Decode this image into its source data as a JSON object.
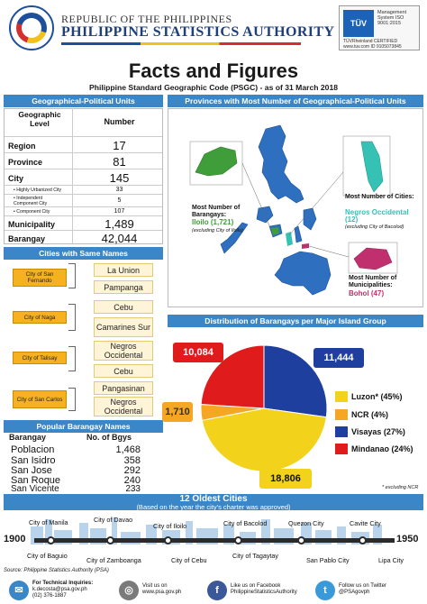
{
  "header": {
    "republic": "REPUBLIC OF THE PHILIPPINES",
    "agency": "PHILIPPINE STATISTICS AUTHORITY",
    "cert_brand": "TÜV",
    "cert_text": "Management System ISO 9001:2015",
    "cert_sub": "TÜVRheinland CERTIFIED",
    "cert_id": "www.tuv.com ID 9105073845"
  },
  "title": "Facts and Figures",
  "subtitle": "Philippine Standard Geographic Code (PSGC) - as of 31 March 2018",
  "geo_units": {
    "section_title": "Geographical-Political Units",
    "col_level": "Geographic Level",
    "col_number": "Number",
    "rows": [
      {
        "label": "Region",
        "value": "17"
      },
      {
        "label": "Province",
        "value": "81"
      },
      {
        "label": "City",
        "value": "145"
      },
      {
        "label": "• Highly Urbanized City",
        "value": "33"
      },
      {
        "label": "• Independent Component City",
        "value": "5"
      },
      {
        "label": "• Component City",
        "value": "107"
      },
      {
        "label": "Municipality",
        "value": "1,489"
      },
      {
        "label": "Barangay",
        "value": "42,044"
      }
    ]
  },
  "same_names": {
    "section_title": "Cities with Same Names",
    "groups": [
      {
        "city": "City of San Fernando",
        "provinces": [
          "La Union",
          "Pampanga"
        ]
      },
      {
        "city": "City of Naga",
        "provinces": [
          "Cebu",
          "Camarines Sur"
        ]
      },
      {
        "city": "City of Talisay",
        "provinces": [
          "Negros Occidental",
          "Cebu"
        ]
      },
      {
        "city": "City of San Carlos",
        "provinces": [
          "Pangasinan",
          "Negros Occidental"
        ]
      }
    ]
  },
  "popular": {
    "section_title": "Popular Barangay Names",
    "col_name": "Barangay",
    "col_count": "No. of Bgys",
    "rows": [
      {
        "name": "Poblacion",
        "count": "1,468"
      },
      {
        "name": "San Isidro",
        "count": "358"
      },
      {
        "name": "San Jose",
        "count": "292"
      },
      {
        "name": "San Roque",
        "count": "240"
      },
      {
        "name": "San Vicente",
        "count": "233"
      }
    ]
  },
  "map_panel": {
    "section_title": "Provinces with Most Number of Geographical-Political Units",
    "barangays_label": "Most Number of Barangays:",
    "barangays_value": "Iloilo (1,721)",
    "barangays_note": "(excluding City of Iloilo)",
    "cities_label": "Most Number of Cities:",
    "cities_value": "Negros Occidental (12)",
    "cities_note": "(excluding City of Bacolod)",
    "municipalities_label": "Most Number of Municipalities:",
    "municipalities_value": "Bohol (47)",
    "colors": {
      "land": "#2f6fc0",
      "iloilo": "#3f9e3a",
      "negros": "#35c1b4",
      "bohol": "#c0306f"
    }
  },
  "distribution": {
    "section_title": "Distribution of Barangays per Major Island Group",
    "footnote": "* excluding NCR",
    "legend": [
      {
        "label": "Luzon* (45%)",
        "color": "#f2d21b"
      },
      {
        "label": "NCR (4%)",
        "color": "#f5a623"
      },
      {
        "label": "Visayas (27%)",
        "color": "#1f3f9e"
      },
      {
        "label": "Mindanao (24%)",
        "color": "#e01b1b"
      }
    ],
    "values": [
      {
        "label": "18,806",
        "color": "#f2d21b"
      },
      {
        "label": "1,710",
        "color": "#f5a623"
      },
      {
        "label": "11,444",
        "color": "#1f3f9e"
      },
      {
        "label": "10,084",
        "color": "#e01b1b"
      }
    ]
  },
  "chart_data": {
    "type": "pie",
    "categories": [
      "Luzon*",
      "NCR",
      "Visayas",
      "Mindanao"
    ],
    "values": [
      18806,
      1710,
      11444,
      10084
    ],
    "percent": [
      45,
      4,
      27,
      24
    ],
    "title": "Distribution of Barangays per Major Island Group"
  },
  "oldest": {
    "title": "12 Oldest Cities",
    "subtitle": "(Based on the year the city's charter was approved)",
    "start_year": "1900",
    "end_year": "1950",
    "top": [
      "City of Manila",
      "City of Davao",
      "City of Iloilo",
      "City of Bacolod",
      "Quezon City",
      "Cavite City"
    ],
    "bottom": [
      "City of Baguio",
      "City of Zamboanga",
      "City of Cebu",
      "City of Tagaytay",
      "San Pablo City",
      "Lipa City"
    ]
  },
  "footer": {
    "source": "Source: Philippine Statistics Authority (PSA)",
    "tech": "For Technical Inquiries:",
    "email": "k.decosta@psa.gov.ph",
    "phone": "(02) 376-1887",
    "visit": "Visit us on",
    "website": "www.psa.gov.ph",
    "fb_label": "Like us on Facebook",
    "fb": "PhilippineStatisticsAuthority",
    "tw_label": "Follow us on Twitter",
    "tw": "@PSAgovph"
  }
}
